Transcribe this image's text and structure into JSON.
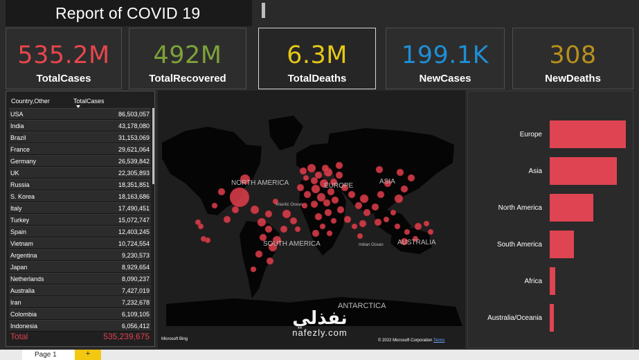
{
  "header": {
    "title": "Report of COVID 19"
  },
  "kpis": [
    {
      "value": "535.2M",
      "label": "TotalCases",
      "color": "#e8464d"
    },
    {
      "value": "492M",
      "label": "TotalRecovered",
      "color": "#7ea23a"
    },
    {
      "value": "6.3M",
      "label": "TotalDeaths",
      "color": "#e6c817"
    },
    {
      "value": "199.1K",
      "label": "NewCases",
      "color": "#1e8fd6"
    },
    {
      "value": "308",
      "label": "NewDeaths",
      "color": "#b8901d"
    }
  ],
  "table": {
    "headers": {
      "country": "Country,Other",
      "cases": "TotalCases"
    },
    "rows": [
      {
        "country": "USA",
        "cases": "86,503,057"
      },
      {
        "country": "India",
        "cases": "43,178,080"
      },
      {
        "country": "Brazil",
        "cases": "31,153,069"
      },
      {
        "country": "France",
        "cases": "29,621,064"
      },
      {
        "country": "Germany",
        "cases": "26,539,842"
      },
      {
        "country": "UK",
        "cases": "22,305,893"
      },
      {
        "country": "Russia",
        "cases": "18,351,851"
      },
      {
        "country": "S. Korea",
        "cases": "18,163,686"
      },
      {
        "country": "Italy",
        "cases": "17,490,451"
      },
      {
        "country": "Turkey",
        "cases": "15,072,747"
      },
      {
        "country": "Spain",
        "cases": "12,403,245"
      },
      {
        "country": "Vietnam",
        "cases": "10,724,554"
      },
      {
        "country": "Argentina",
        "cases": "9,230,573"
      },
      {
        "country": "Japan",
        "cases": "8,929,654"
      },
      {
        "country": "Netherlands",
        "cases": "8,090,237"
      },
      {
        "country": "Australia",
        "cases": "7,427,019"
      },
      {
        "country": "Iran",
        "cases": "7,232,678"
      },
      {
        "country": "Colombia",
        "cases": "6,109,105"
      },
      {
        "country": "Indonesia",
        "cases": "6,056,412"
      }
    ],
    "total": {
      "label": "Total",
      "value": "535,239,675"
    }
  },
  "map": {
    "labels": {
      "north_america": "NORTH AMERICA",
      "south_america": "SOUTH AMERICA",
      "europe": "EUROPE",
      "asia": "ASIA",
      "australia": "AUSTRALIA",
      "antarctica": "ANTARCTICA",
      "atlantic": "Atlantic Ocean",
      "indian": "Indian Ocean"
    },
    "logo": "Microsoft Bing",
    "copyright": "© 2022 Microsoft Corporation",
    "terms": "Terms",
    "bubble_color": "#e0404c"
  },
  "chart_data": {
    "type": "bar",
    "orientation": "horizontal",
    "categories": [
      "Europe",
      "Asia",
      "North America",
      "South America",
      "Africa",
      "Australia/Oceania"
    ],
    "values": [
      100,
      88,
      57,
      32,
      7,
      5
    ],
    "bar_color": "#df4452"
  },
  "watermark": {
    "arabic": "نفذلي",
    "latin": "nafezly.com"
  },
  "footer": {
    "page_tab": "Page 1",
    "add_tab": "+"
  }
}
